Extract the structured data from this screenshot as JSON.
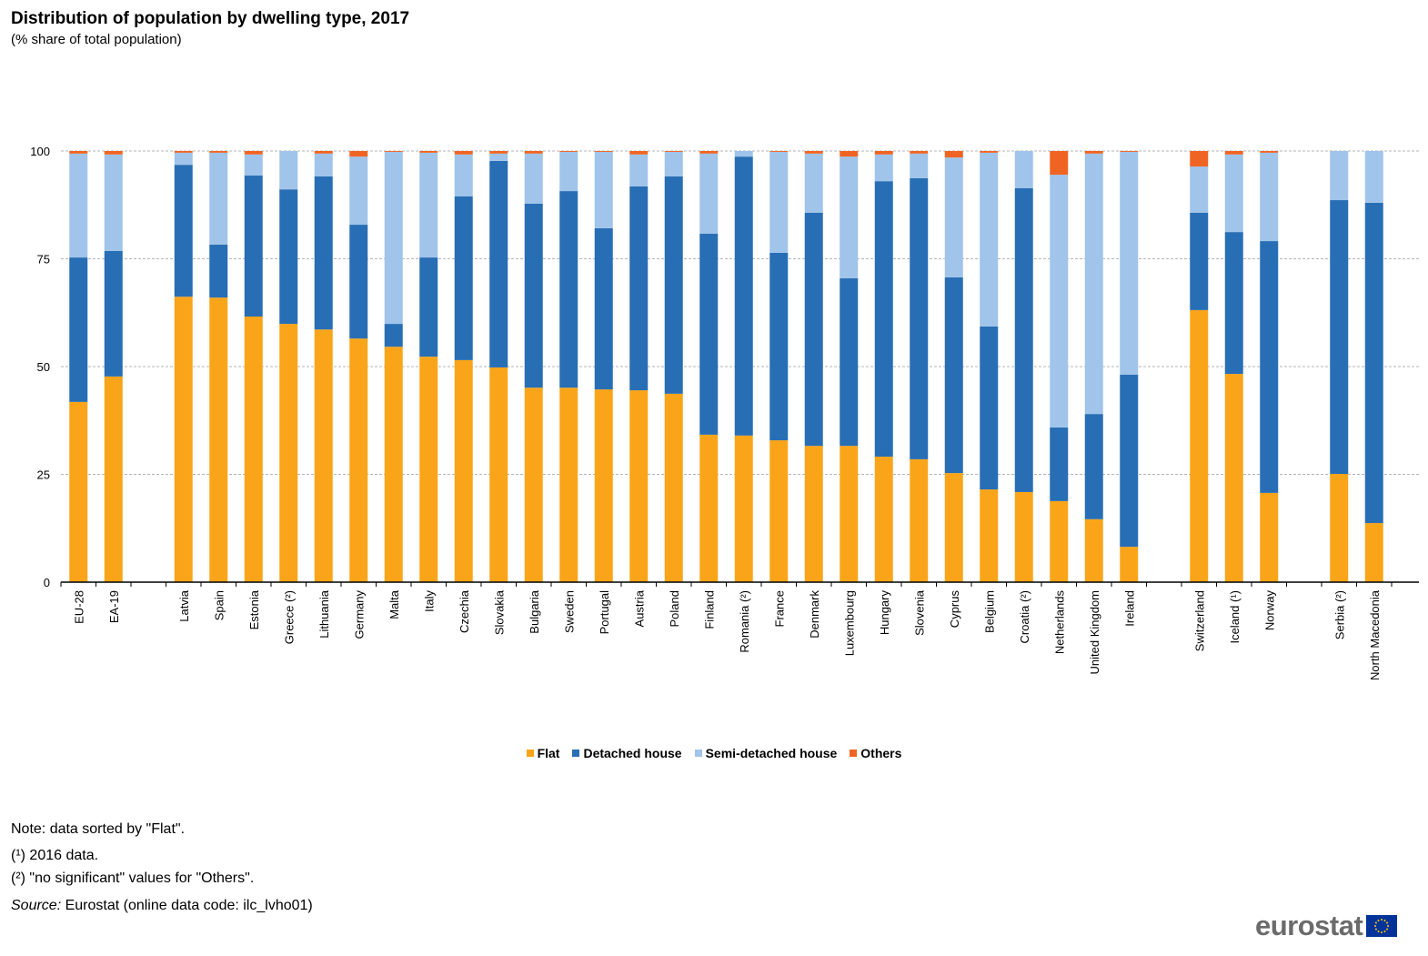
{
  "title": "Distribution of population by dwelling type, 2017",
  "subtitle": "(% share of total population)",
  "chart_data": {
    "type": "bar",
    "stacked": true,
    "title": "Distribution of population by dwelling type, 2017",
    "subtitle": "(% share of total population)",
    "xlabel": "",
    "ylabel": "",
    "ylim": [
      0,
      100
    ],
    "yticks": [
      0,
      25,
      50,
      75,
      100
    ],
    "grid": true,
    "legend_position": "bottom",
    "groups": [
      [
        "EU-28",
        "EA-19"
      ],
      [
        "Latvia",
        "Spain",
        "Estonia",
        "Greece (²)",
        "Lithuania",
        "Germany",
        "Malta",
        "Italy",
        "Czechia",
        "Slovakia",
        "Bulgaria",
        "Sweden",
        "Portugal",
        "Austria",
        "Poland",
        "Finland",
        "Romania (²)",
        "France",
        "Denmark",
        "Luxembourg",
        "Hungary",
        "Slovenia",
        "Cyprus",
        "Belgium",
        "Croatia (²)",
        "Netherlands",
        "United Kingdom",
        "Ireland"
      ],
      [
        "Switzerland",
        "Iceland (¹)",
        "Norway"
      ],
      [
        "Serbia (²)",
        "North Macedonia"
      ]
    ],
    "series": [
      {
        "name": "Flat",
        "color": "#faa519",
        "values": [
          41.8,
          47.7,
          66.2,
          66.0,
          61.6,
          59.9,
          58.6,
          56.5,
          54.6,
          52.3,
          51.5,
          49.8,
          45.1,
          45.1,
          44.7,
          44.5,
          43.7,
          34.2,
          34.0,
          32.9,
          31.6,
          31.6,
          29.1,
          28.5,
          25.3,
          21.5,
          20.9,
          18.8,
          14.6,
          8.2,
          63.1,
          48.3,
          20.7,
          25.1,
          13.7
        ]
      },
      {
        "name": "Detached house",
        "color": "#286eb4",
        "values": [
          33.5,
          29.1,
          30.6,
          12.3,
          32.7,
          31.2,
          35.5,
          26.4,
          5.3,
          23.0,
          38.0,
          47.9,
          42.7,
          45.6,
          37.4,
          47.3,
          50.4,
          46.6,
          64.7,
          43.5,
          54.1,
          38.9,
          63.9,
          65.2,
          45.4,
          37.8,
          70.5,
          17.1,
          24.4,
          39.9,
          22.6,
          32.9,
          58.4,
          63.5,
          74.3
        ]
      },
      {
        "name": "Semi-detached house",
        "color": "#a0c4ea",
        "values": [
          24.1,
          22.4,
          2.8,
          21.3,
          4.9,
          8.9,
          5.3,
          15.8,
          39.9,
          24.3,
          9.7,
          1.7,
          11.6,
          9.1,
          17.7,
          7.4,
          5.7,
          18.6,
          1.3,
          23.4,
          13.7,
          28.2,
          6.2,
          5.7,
          27.8,
          40.3,
          8.6,
          58.6,
          60.4,
          51.7,
          10.7,
          18.0,
          20.5,
          11.4,
          12.0
        ]
      },
      {
        "name": "Others",
        "color": "#f06423",
        "values": [
          0.6,
          0.8,
          0.4,
          0.4,
          0.8,
          0,
          0.6,
          1.3,
          0.2,
          0.4,
          0.8,
          0.6,
          0.6,
          0.2,
          0.2,
          0.8,
          0.2,
          0.6,
          0,
          0.2,
          0.6,
          1.3,
          0.8,
          0.6,
          1.5,
          0.4,
          0,
          5.5,
          0.6,
          0.2,
          3.6,
          0.8,
          0.4,
          0,
          0
        ]
      }
    ]
  },
  "legend": [
    "Flat",
    "Detached house",
    "Semi-detached house",
    "Others"
  ],
  "notes": {
    "sorted": "Note: data sorted by \"Flat\".",
    "note1": "(¹) 2016 data.",
    "note2": "(²) \"no significant\" values for \"Others\".",
    "source_label": "Source:",
    "source_text": " Eurostat (online data code: ilc_lvho01)"
  },
  "logo": {
    "text": "eurostat",
    "flag_color": "#003399",
    "star_color": "#ffcc00"
  }
}
